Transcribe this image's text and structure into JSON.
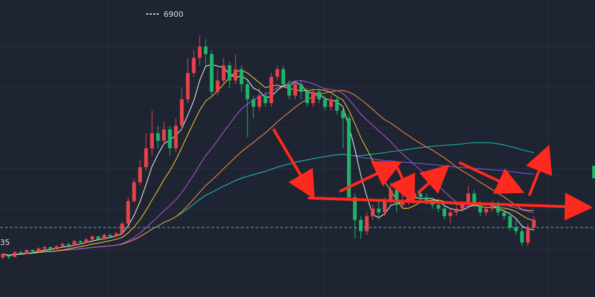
{
  "chart_data": {
    "type": "candlestick",
    "price_range": [
      3800,
      7200
    ],
    "high_label": "6900",
    "left_edge_label": "35",
    "current_price_level": 4350,
    "colors": {
      "background": "#1e2431",
      "grid": "#2a3140",
      "up": "#e8424a",
      "down": "#21b36b",
      "ma5": "#e6e6e6",
      "ma10": "#f2c232",
      "ma20": "#b04fd6",
      "ma30": "#f08a3a",
      "ma60": "#19b8a4",
      "ma120": "#6a5af2",
      "price_line": "#3cc2b0",
      "annotation": "#ff2a1f"
    },
    "candles": [
      [
        3950,
        4000,
        3930,
        3980
      ],
      [
        3980,
        3960,
        3930,
        4000
      ],
      [
        3960,
        4020,
        3950,
        4040
      ],
      [
        4020,
        4000,
        3990,
        4040
      ],
      [
        4000,
        4050,
        3990,
        4060
      ],
      [
        4050,
        4030,
        4010,
        4060
      ],
      [
        4030,
        4070,
        4020,
        4090
      ],
      [
        4070,
        4090,
        4050,
        4110
      ],
      [
        4090,
        4060,
        4040,
        4100
      ],
      [
        4060,
        4100,
        4050,
        4120
      ],
      [
        4100,
        4130,
        4090,
        4150
      ],
      [
        4130,
        4110,
        4090,
        4140
      ],
      [
        4110,
        4170,
        4100,
        4190
      ],
      [
        4170,
        4150,
        4130,
        4180
      ],
      [
        4150,
        4190,
        4140,
        4210
      ],
      [
        4190,
        4230,
        4170,
        4250
      ],
      [
        4230,
        4190,
        4180,
        4240
      ],
      [
        4190,
        4250,
        4180,
        4270
      ],
      [
        4250,
        4230,
        4210,
        4270
      ],
      [
        4230,
        4270,
        4220,
        4290
      ],
      [
        4270,
        4400,
        4260,
        4420
      ],
      [
        4400,
        4700,
        4380,
        4750
      ],
      [
        4700,
        4950,
        4680,
        5000
      ],
      [
        4950,
        5150,
        4900,
        5250
      ],
      [
        5150,
        5400,
        5100,
        5600
      ],
      [
        5400,
        5600,
        5300,
        5900
      ],
      [
        5600,
        5500,
        5400,
        5700
      ],
      [
        5500,
        5650,
        5450,
        5750
      ],
      [
        5650,
        5400,
        5300,
        5700
      ],
      [
        5400,
        5700,
        5350,
        5800
      ],
      [
        5700,
        6050,
        5650,
        6200
      ],
      [
        6050,
        6400,
        6000,
        6600
      ],
      [
        6400,
        6600,
        6350,
        6700
      ],
      [
        6600,
        6750,
        6500,
        6900
      ],
      [
        6750,
        6650,
        6500,
        6850
      ],
      [
        6650,
        6150,
        6100,
        6700
      ],
      [
        6150,
        6300,
        6100,
        6450
      ],
      [
        6300,
        6500,
        6250,
        6600
      ],
      [
        6500,
        6300,
        6200,
        6550
      ],
      [
        6300,
        6450,
        6250,
        6650
      ],
      [
        6450,
        6250,
        6150,
        6500
      ],
      [
        6250,
        6050,
        5550,
        6300
      ],
      [
        6050,
        5950,
        5800,
        6100
      ],
      [
        5950,
        6100,
        5900,
        6200
      ],
      [
        6100,
        6000,
        5950,
        6150
      ],
      [
        6000,
        6350,
        5950,
        6400
      ],
      [
        6350,
        6450,
        6300,
        6500
      ],
      [
        6450,
        6250,
        6200,
        6500
      ],
      [
        6250,
        6100,
        6050,
        6300
      ],
      [
        6100,
        6250,
        6050,
        6300
      ],
      [
        6250,
        6150,
        6050,
        6300
      ],
      [
        6150,
        6000,
        5950,
        6200
      ],
      [
        6000,
        6150,
        5950,
        6200
      ],
      [
        6150,
        6050,
        6000,
        6200
      ],
      [
        6050,
        5950,
        5900,
        6100
      ],
      [
        5950,
        6050,
        5900,
        6100
      ],
      [
        6050,
        5900,
        5850,
        6100
      ],
      [
        5900,
        5800,
        5400,
        5950
      ],
      [
        5800,
        4750,
        4700,
        5850
      ],
      [
        4750,
        4450,
        4200,
        4800
      ],
      [
        4450,
        4300,
        4200,
        4500
      ],
      [
        4300,
        4500,
        4250,
        4550
      ],
      [
        4500,
        4600,
        4450,
        4650
      ],
      [
        4600,
        4550,
        4450,
        4700
      ],
      [
        4550,
        4700,
        4500,
        4750
      ],
      [
        4700,
        4850,
        4650,
        4950
      ],
      [
        4850,
        4650,
        4550,
        4900
      ],
      [
        4650,
        4700,
        4600,
        4800
      ],
      [
        4700,
        4750,
        4650,
        4800
      ],
      [
        4750,
        4800,
        4700,
        4850
      ],
      [
        4800,
        4750,
        4700,
        4850
      ],
      [
        4750,
        4700,
        4650,
        4800
      ],
      [
        4700,
        4650,
        4600,
        4750
      ],
      [
        4650,
        4600,
        4550,
        4700
      ],
      [
        4600,
        4500,
        4450,
        4650
      ],
      [
        4500,
        4550,
        4400,
        4600
      ],
      [
        4550,
        4600,
        4500,
        4650
      ],
      [
        4600,
        4650,
        4550,
        4700
      ],
      [
        4650,
        4800,
        4600,
        4900
      ],
      [
        4800,
        4650,
        4600,
        4850
      ],
      [
        4650,
        4550,
        4500,
        4700
      ],
      [
        4550,
        4600,
        4500,
        4650
      ],
      [
        4600,
        4650,
        4550,
        4700
      ],
      [
        4650,
        4550,
        4500,
        4700
      ],
      [
        4550,
        4500,
        4450,
        4600
      ],
      [
        4500,
        4350,
        4300,
        4550
      ],
      [
        4350,
        4300,
        4250,
        4450
      ],
      [
        4300,
        4150,
        4100,
        4350
      ],
      [
        4150,
        4350,
        4100,
        4400
      ],
      [
        4350,
        4450,
        4300,
        4500
      ]
    ]
  }
}
